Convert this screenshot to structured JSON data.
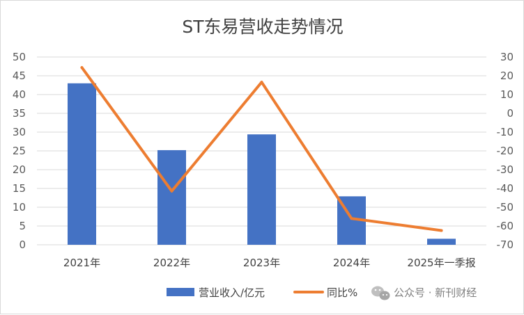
{
  "chart_data": {
    "type": "bar",
    "title": "ST东易营收走势情况",
    "categories": [
      "2021年",
      "2022年",
      "2023年",
      "2024年",
      "2025年一季报"
    ],
    "series": [
      {
        "name": "营业收入/亿元",
        "type": "bar",
        "axis": "left",
        "color": "#4472C4",
        "values": [
          43,
          25.2,
          29.4,
          12.9,
          1.6
        ]
      },
      {
        "name": "同比%",
        "type": "line",
        "axis": "right",
        "color": "#ED7D31",
        "values": [
          24.4,
          -41.4,
          16.6,
          -56,
          -62.4
        ]
      }
    ],
    "y_left": {
      "min": 0,
      "max": 50,
      "step": 5,
      "ticks": [
        "0",
        "5",
        "10",
        "15",
        "20",
        "25",
        "30",
        "35",
        "40",
        "45",
        "50"
      ]
    },
    "y_right": {
      "min": -70,
      "max": 30,
      "step": 10,
      "ticks": [
        "-70",
        "-60",
        "-50",
        "-40",
        "-30",
        "-20",
        "-10",
        "0",
        "10",
        "20",
        "30"
      ]
    },
    "grid": true,
    "legend_position": "bottom"
  },
  "watermark": {
    "text": "公众号 · 新刊财经",
    "icon": "wechat-icon"
  }
}
